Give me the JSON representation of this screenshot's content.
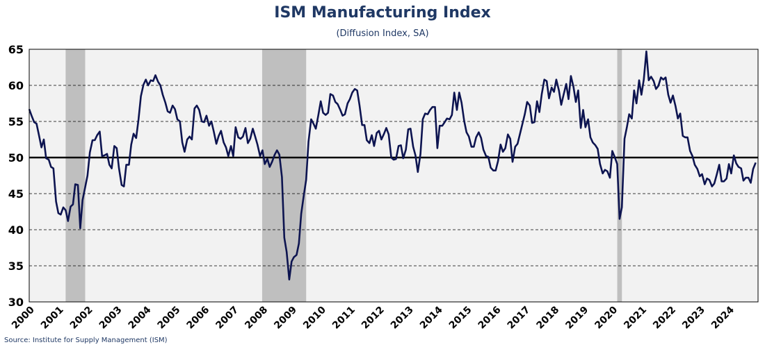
{
  "title": "ISM Manufacturing Index",
  "subtitle": "(Diffusion Index, SA)",
  "source": "Source: Institute for Supply Management (ISM)",
  "colors": {
    "line": "#0d1450",
    "recession": "#bfbfbf",
    "plot_bg": "#f2f2f2",
    "reference_line": "#000000",
    "title": "#1f3864"
  },
  "chart_data": {
    "type": "line",
    "title": "ISM Manufacturing Index",
    "subtitle": "(Diffusion Index, SA)",
    "ylim": [
      30,
      65
    ],
    "yticks": [
      30,
      35,
      40,
      45,
      50,
      55,
      60,
      65
    ],
    "xlim": [
      2000.0,
      2025.0
    ],
    "xtick_labels": [
      "2000",
      "2001",
      "2002",
      "2003",
      "2004",
      "2005",
      "2006",
      "2007",
      "2008",
      "2009",
      "2010",
      "2011",
      "2012",
      "2013",
      "2014",
      "2015",
      "2016",
      "2017",
      "2018",
      "2019",
      "2020",
      "2021",
      "2022",
      "2023",
      "2024"
    ],
    "grid": "horizontal dashed",
    "reference_line": 50,
    "recessions": [
      [
        2001.25,
        2001.92
      ],
      [
        2007.99,
        2009.5
      ],
      [
        2020.17,
        2020.33
      ]
    ],
    "series": [
      {
        "x": [
          2000.0,
          2000.08,
          2000.17,
          2000.25,
          2000.33,
          2000.42,
          2000.5,
          2000.58,
          2000.67,
          2000.75,
          2000.83,
          2000.92,
          2001.0,
          2001.08,
          2001.17,
          2001.25,
          2001.33,
          2001.42,
          2001.5,
          2001.58,
          2001.67,
          2001.75,
          2001.83,
          2001.92,
          2002.0,
          2002.08,
          2002.17,
          2002.25,
          2002.33,
          2002.42,
          2002.5,
          2002.58,
          2002.67,
          2002.75,
          2002.83,
          2002.92,
          2003.0,
          2003.08,
          2003.17,
          2003.25,
          2003.33,
          2003.42,
          2003.5,
          2003.58,
          2003.67,
          2003.75,
          2003.83,
          2003.92,
          2004.0,
          2004.08,
          2004.17,
          2004.25,
          2004.33,
          2004.42,
          2004.5,
          2004.58,
          2004.67,
          2004.75,
          2004.83,
          2004.92,
          2005.0,
          2005.08,
          2005.17,
          2005.25,
          2005.33,
          2005.42,
          2005.5,
          2005.58,
          2005.67,
          2005.75,
          2005.83,
          2005.92,
          2006.0,
          2006.08,
          2006.17,
          2006.25,
          2006.33,
          2006.42,
          2006.5,
          2006.58,
          2006.67,
          2006.75,
          2006.83,
          2006.92,
          2007.0,
          2007.08,
          2007.17,
          2007.25,
          2007.33,
          2007.42,
          2007.5,
          2007.58,
          2007.67,
          2007.75,
          2007.83,
          2007.92,
          2008.0,
          2008.08,
          2008.17,
          2008.25,
          2008.33,
          2008.42,
          2008.5,
          2008.58,
          2008.67,
          2008.75,
          2008.83,
          2008.92,
          2009.0,
          2009.08,
          2009.17,
          2009.25,
          2009.33,
          2009.42,
          2009.5,
          2009.58,
          2009.67,
          2009.75,
          2009.83,
          2009.92,
          2010.0,
          2010.08,
          2010.17,
          2010.25,
          2010.33,
          2010.42,
          2010.5,
          2010.58,
          2010.67,
          2010.75,
          2010.83,
          2010.92,
          2011.0,
          2011.08,
          2011.17,
          2011.25,
          2011.33,
          2011.42,
          2011.5,
          2011.58,
          2011.67,
          2011.75,
          2011.83,
          2011.92,
          2012.0,
          2012.08,
          2012.17,
          2012.25,
          2012.33,
          2012.42,
          2012.5,
          2012.58,
          2012.67,
          2012.75,
          2012.83,
          2012.92,
          2013.0,
          2013.08,
          2013.17,
          2013.25,
          2013.33,
          2013.42,
          2013.5,
          2013.58,
          2013.67,
          2013.75,
          2013.83,
          2013.92,
          2014.0,
          2014.08,
          2014.17,
          2014.25,
          2014.33,
          2014.42,
          2014.5,
          2014.58,
          2014.67,
          2014.75,
          2014.83,
          2014.92,
          2015.0,
          2015.08,
          2015.17,
          2015.25,
          2015.33,
          2015.42,
          2015.5,
          2015.58,
          2015.67,
          2015.75,
          2015.83,
          2015.92,
          2016.0,
          2016.08,
          2016.17,
          2016.25,
          2016.33,
          2016.42,
          2016.5,
          2016.58,
          2016.67,
          2016.75,
          2016.83,
          2016.92,
          2017.0,
          2017.08,
          2017.17,
          2017.25,
          2017.33,
          2017.42,
          2017.5,
          2017.58,
          2017.67,
          2017.75,
          2017.83,
          2017.92,
          2018.0,
          2018.08,
          2018.17,
          2018.25,
          2018.33,
          2018.42,
          2018.5,
          2018.58,
          2018.67,
          2018.75,
          2018.83,
          2018.92,
          2019.0,
          2019.08,
          2019.17,
          2019.25,
          2019.33,
          2019.42,
          2019.5,
          2019.58,
          2019.67,
          2019.75,
          2019.83,
          2019.92,
          2020.0,
          2020.08,
          2020.17,
          2020.25,
          2020.33,
          2020.42,
          2020.5,
          2020.58,
          2020.67,
          2020.75,
          2020.83,
          2020.92,
          2021.0,
          2021.08,
          2021.17,
          2021.25,
          2021.33,
          2021.42,
          2021.5,
          2021.58,
          2021.67,
          2021.75,
          2021.83,
          2021.92,
          2022.0,
          2022.08,
          2022.17,
          2022.25,
          2022.33,
          2022.42,
          2022.5,
          2022.58,
          2022.67,
          2022.75,
          2022.83,
          2022.92,
          2023.0,
          2023.08,
          2023.17,
          2023.25,
          2023.33,
          2023.42,
          2023.5,
          2023.58,
          2023.67,
          2023.75,
          2023.83,
          2023.92,
          2024.0,
          2024.08,
          2024.17,
          2024.25,
          2024.33,
          2024.42,
          2024.5,
          2024.58,
          2024.67,
          2024.75,
          2024.83,
          2024.92
        ],
        "y": [
          56.7,
          55.8,
          54.9,
          54.7,
          53.2,
          51.4,
          52.5,
          49.9,
          49.7,
          48.7,
          48.5,
          43.9,
          42.3,
          42.1,
          43.1,
          42.7,
          41.2,
          43.2,
          43.5,
          46.3,
          46.2,
          40.2,
          44.1,
          45.9,
          47.5,
          50.7,
          52.4,
          52.4,
          53.1,
          53.6,
          50.2,
          50.3,
          50.5,
          49.0,
          48.5,
          51.6,
          51.3,
          48.5,
          46.2,
          46.0,
          49.0,
          49.0,
          51.8,
          53.3,
          52.7,
          55.3,
          58.5,
          60.1,
          60.8,
          60.0,
          60.7,
          60.6,
          61.4,
          60.5,
          60.0,
          58.7,
          57.6,
          56.4,
          56.2,
          57.2,
          56.7,
          55.3,
          55.0,
          52.1,
          50.8,
          52.5,
          52.9,
          52.5,
          56.8,
          57.2,
          56.6,
          55.0,
          54.9,
          55.8,
          54.4,
          55.0,
          53.6,
          51.9,
          53.0,
          53.7,
          52.1,
          51.4,
          50.2,
          51.6,
          50.2,
          54.2,
          52.8,
          52.6,
          52.9,
          54.1,
          52.0,
          52.6,
          54.0,
          52.9,
          51.8,
          50.2,
          51.0,
          49.1,
          49.8,
          48.7,
          49.4,
          50.4,
          51.0,
          50.4,
          47.3,
          38.9,
          36.9,
          33.1,
          35.6,
          36.2,
          36.5,
          38.1,
          42.2,
          44.8,
          46.9,
          52.2,
          55.3,
          54.7,
          54.0,
          55.9,
          57.8,
          56.2,
          55.9,
          56.2,
          58.8,
          58.6,
          57.7,
          57.4,
          56.6,
          55.8,
          56.0,
          57.5,
          58.1,
          59.0,
          59.5,
          59.3,
          57.2,
          54.5,
          54.5,
          52.4,
          52.0,
          53.1,
          51.6,
          53.4,
          53.7,
          52.5,
          53.3,
          54.1,
          53.2,
          50.0,
          49.7,
          49.8,
          51.6,
          51.7,
          49.9,
          51.1,
          53.9,
          54.0,
          51.5,
          50.3,
          48.0,
          50.5,
          55.3,
          56.1,
          56.0,
          56.6,
          57.0,
          57.0,
          51.3,
          54.4,
          54.4,
          54.9,
          55.4,
          55.3,
          55.9,
          59.0,
          56.6,
          59.0,
          57.6,
          55.1,
          53.5,
          52.9,
          51.5,
          51.5,
          52.8,
          53.5,
          52.7,
          51.1,
          50.2,
          50.1,
          48.6,
          48.2,
          48.2,
          49.5,
          51.8,
          50.8,
          51.3,
          53.2,
          52.6,
          49.4,
          51.5,
          51.9,
          53.2,
          54.7,
          56.0,
          57.7,
          57.2,
          54.8,
          54.9,
          57.8,
          56.3,
          58.8,
          60.8,
          60.6,
          58.2,
          59.7,
          59.1,
          60.8,
          59.3,
          57.3,
          58.7,
          60.2,
          58.1,
          61.3,
          59.8,
          57.7,
          59.3,
          54.1,
          56.6,
          54.2,
          55.3,
          52.8,
          52.1,
          51.7,
          51.2,
          49.1,
          47.8,
          48.3,
          48.1,
          47.2,
          50.9,
          50.1,
          49.1,
          41.5,
          43.1,
          52.6,
          54.2,
          56.0,
          55.4,
          59.3,
          57.5,
          60.7,
          58.7,
          60.8,
          64.7,
          60.7,
          61.2,
          60.6,
          59.5,
          59.9,
          61.1,
          60.8,
          61.1,
          58.7,
          57.6,
          58.6,
          57.1,
          55.4,
          56.1,
          53.0,
          52.8,
          52.8,
          50.9,
          50.2,
          49.0,
          48.4,
          47.4,
          47.7,
          46.3,
          47.1,
          46.9,
          46.0,
          46.4,
          47.6,
          49.0,
          46.7,
          46.7,
          47.1,
          49.1,
          47.8,
          50.3,
          49.2,
          48.7,
          48.5,
          46.8,
          47.2,
          47.2,
          46.5,
          48.4,
          49.3
        ]
      }
    ]
  }
}
